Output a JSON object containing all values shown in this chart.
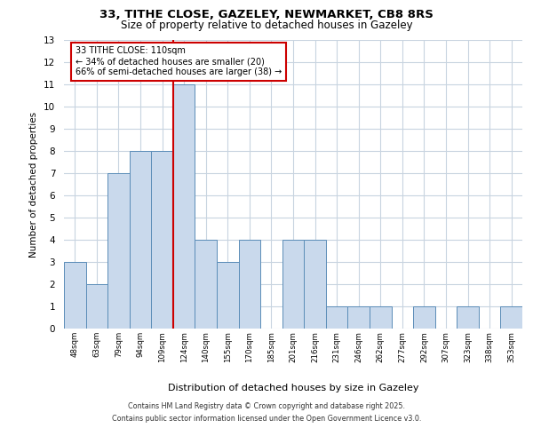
{
  "title1": "33, TITHE CLOSE, GAZELEY, NEWMARKET, CB8 8RS",
  "title2": "Size of property relative to detached houses in Gazeley",
  "xlabel": "Distribution of detached houses by size in Gazeley",
  "ylabel": "Number of detached properties",
  "categories": [
    "48sqm",
    "63sqm",
    "79sqm",
    "94sqm",
    "109sqm",
    "124sqm",
    "140sqm",
    "155sqm",
    "170sqm",
    "185sqm",
    "201sqm",
    "216sqm",
    "231sqm",
    "246sqm",
    "262sqm",
    "277sqm",
    "292sqm",
    "307sqm",
    "323sqm",
    "338sqm",
    "353sqm"
  ],
  "values": [
    3,
    2,
    7,
    8,
    8,
    11,
    4,
    3,
    4,
    0,
    4,
    4,
    1,
    1,
    1,
    0,
    1,
    0,
    1,
    0,
    1
  ],
  "bar_color": "#c9d9ec",
  "bar_edge_color": "#5b8db8",
  "vline_x": 4.5,
  "vline_color": "#cc0000",
  "annotation_text": "33 TITHE CLOSE: 110sqm\n← 34% of detached houses are smaller (20)\n66% of semi-detached houses are larger (38) →",
  "annotation_box_color": "white",
  "annotation_box_edge": "#cc0000",
  "ylim": [
    0,
    13
  ],
  "yticks": [
    0,
    1,
    2,
    3,
    4,
    5,
    6,
    7,
    8,
    9,
    10,
    11,
    12,
    13
  ],
  "footer1": "Contains HM Land Registry data © Crown copyright and database right 2025.",
  "footer2": "Contains public sector information licensed under the Open Government Licence v3.0.",
  "background_color": "#ffffff",
  "grid_color": "#c8d4e0"
}
